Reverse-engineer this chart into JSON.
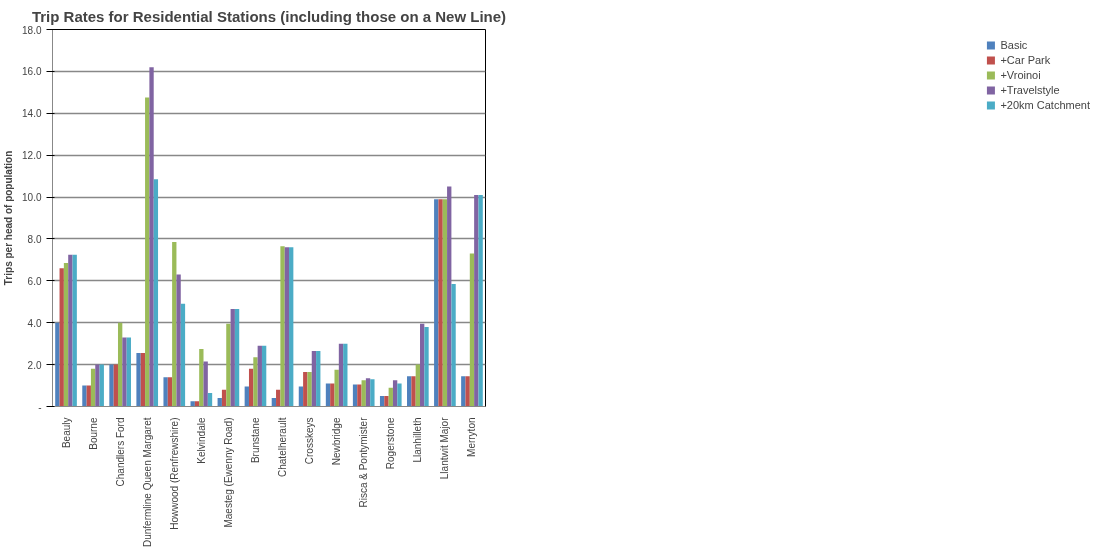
{
  "chart_data": {
    "type": "bar",
    "title": "Trip Rates for Residential Stations (including those on a New Line)",
    "ylabel": "Trips per head of population",
    "categories": [
      "Beauly",
      "Bourne",
      "Chandlers Ford",
      "Dunfermline Queen Margaret",
      "Howwood (Renfrewshire)",
      "Kelvindale",
      "Maesteg (Ewenny Road)",
      "Brunstane",
      "Chatelherault",
      "Crosskeys",
      "Newbridge",
      "Risca & Pontymister",
      "Rogerstone",
      "Llanhilleth",
      "Llantwit Major",
      "Merryton"
    ],
    "series": [
      {
        "name": "Basic",
        "color": "#4f81bd",
        "values": [
          4.0,
          1.0,
          2.0,
          2.55,
          1.4,
          0.25,
          0.4,
          0.95,
          0.4,
          0.95,
          1.1,
          1.05,
          0.5,
          1.45,
          9.9,
          1.45
        ]
      },
      {
        "name": "+Car Park",
        "color": "#c0504d",
        "values": [
          6.6,
          1.0,
          2.0,
          2.55,
          1.4,
          0.25,
          0.8,
          1.8,
          0.8,
          1.65,
          1.1,
          1.05,
          0.5,
          1.45,
          9.9,
          1.45
        ]
      },
      {
        "name": "+Vroinoi",
        "color": "#9bbb59",
        "values": [
          6.85,
          1.8,
          4.0,
          14.75,
          7.85,
          2.75,
          3.95,
          2.35,
          7.65,
          1.65,
          1.75,
          1.25,
          0.9,
          2.0,
          9.9,
          7.3
        ]
      },
      {
        "name": "+Travelstyle",
        "color": "#8064a2",
        "values": [
          7.25,
          2.0,
          3.3,
          16.2,
          6.3,
          2.15,
          4.65,
          2.9,
          7.6,
          2.65,
          3.0,
          1.35,
          1.25,
          3.95,
          10.5,
          10.1
        ]
      },
      {
        "name": "+20km Catchment",
        "color": "#4bacc6",
        "values": [
          7.25,
          2.0,
          3.3,
          10.85,
          4.9,
          0.65,
          4.65,
          2.9,
          7.6,
          2.65,
          3.0,
          1.3,
          1.1,
          3.8,
          5.85,
          10.1
        ]
      }
    ],
    "ylim": [
      0,
      18
    ],
    "yticks": [
      {
        "value": 0,
        "label": "-"
      },
      {
        "value": 2,
        "label": "2.0"
      },
      {
        "value": 4,
        "label": "4.0"
      },
      {
        "value": 6,
        "label": "6.0"
      },
      {
        "value": 8,
        "label": "8.0"
      },
      {
        "value": 10,
        "label": "10.0"
      },
      {
        "value": 12,
        "label": "12.0"
      },
      {
        "value": 14,
        "label": "14.0"
      },
      {
        "value": 16,
        "label": "16.0"
      },
      {
        "value": 18,
        "label": "18.0"
      }
    ],
    "grid": "y",
    "legend": "right"
  }
}
